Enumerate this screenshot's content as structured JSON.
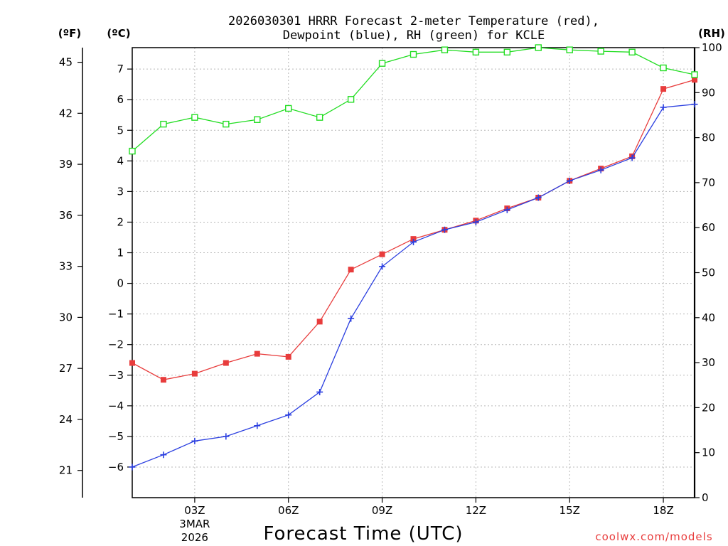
{
  "chart_data": {
    "type": "line",
    "title_line1": "2026030301 HRRR Forecast 2-meter Temperature (red),",
    "title_line2": "Dewpoint (blue), RH (green) for KCLE",
    "xlabel": "Forecast Time (UTC)",
    "credit": "coolwx.com/models",
    "units": {
      "fahrenheit": "(ºF)",
      "celsius": "(ºC)",
      "rh": "(RH)"
    },
    "x_hours": [
      1,
      2,
      3,
      4,
      5,
      6,
      7,
      8,
      9,
      10,
      11,
      12,
      13,
      14,
      15,
      16,
      17,
      18,
      19
    ],
    "x_ticks": [
      {
        "hour": 3,
        "label": "03Z",
        "sub1": "3MAR",
        "sub2": "2026"
      },
      {
        "hour": 6,
        "label": "06Z"
      },
      {
        "hour": 9,
        "label": "09Z"
      },
      {
        "hour": 12,
        "label": "12Z"
      },
      {
        "hour": 15,
        "label": "15Z"
      },
      {
        "hour": 18,
        "label": "18Z"
      }
    ],
    "xlim": [
      1,
      19
    ],
    "celsius_axis": {
      "ylim": [
        -7,
        7.7
      ],
      "ticks": [
        -6,
        -5,
        -4,
        -3,
        -2,
        -1,
        0,
        1,
        2,
        3,
        4,
        5,
        6,
        7
      ]
    },
    "fahrenheit_axis": {
      "ticks": [
        21,
        24,
        27,
        30,
        33,
        36,
        39,
        42,
        45
      ]
    },
    "rh_axis": {
      "ylim": [
        0,
        100
      ],
      "ticks": [
        0,
        10,
        20,
        30,
        40,
        50,
        60,
        70,
        80,
        90,
        100
      ]
    },
    "grid": true,
    "series": [
      {
        "name": "Temperature",
        "axis": "celsius",
        "color": "#e83c3c",
        "marker": "filled-square",
        "values": [
          -2.6,
          -3.15,
          -2.95,
          -2.6,
          -2.3,
          -2.4,
          -1.25,
          0.45,
          0.95,
          1.45,
          1.75,
          2.05,
          2.45,
          2.8,
          3.35,
          3.75,
          4.15,
          6.35,
          6.65
        ]
      },
      {
        "name": "Dewpoint",
        "axis": "celsius",
        "color": "#2b3fe0",
        "marker": "plus",
        "values": [
          -6.0,
          -5.6,
          -5.15,
          -5.0,
          -4.65,
          -4.3,
          -3.55,
          -1.15,
          0.55,
          1.35,
          1.75,
          2.0,
          2.4,
          2.8,
          3.35,
          3.7,
          4.1,
          5.75,
          5.85
        ]
      },
      {
        "name": "RH",
        "axis": "rh",
        "color": "#22dd22",
        "marker": "open-square",
        "values": [
          77,
          83,
          84.5,
          83,
          84,
          86.5,
          84.5,
          88.5,
          96.5,
          98.5,
          99.5,
          99,
          99,
          100,
          99.5,
          99.2,
          99,
          95.5,
          94
        ]
      }
    ]
  }
}
